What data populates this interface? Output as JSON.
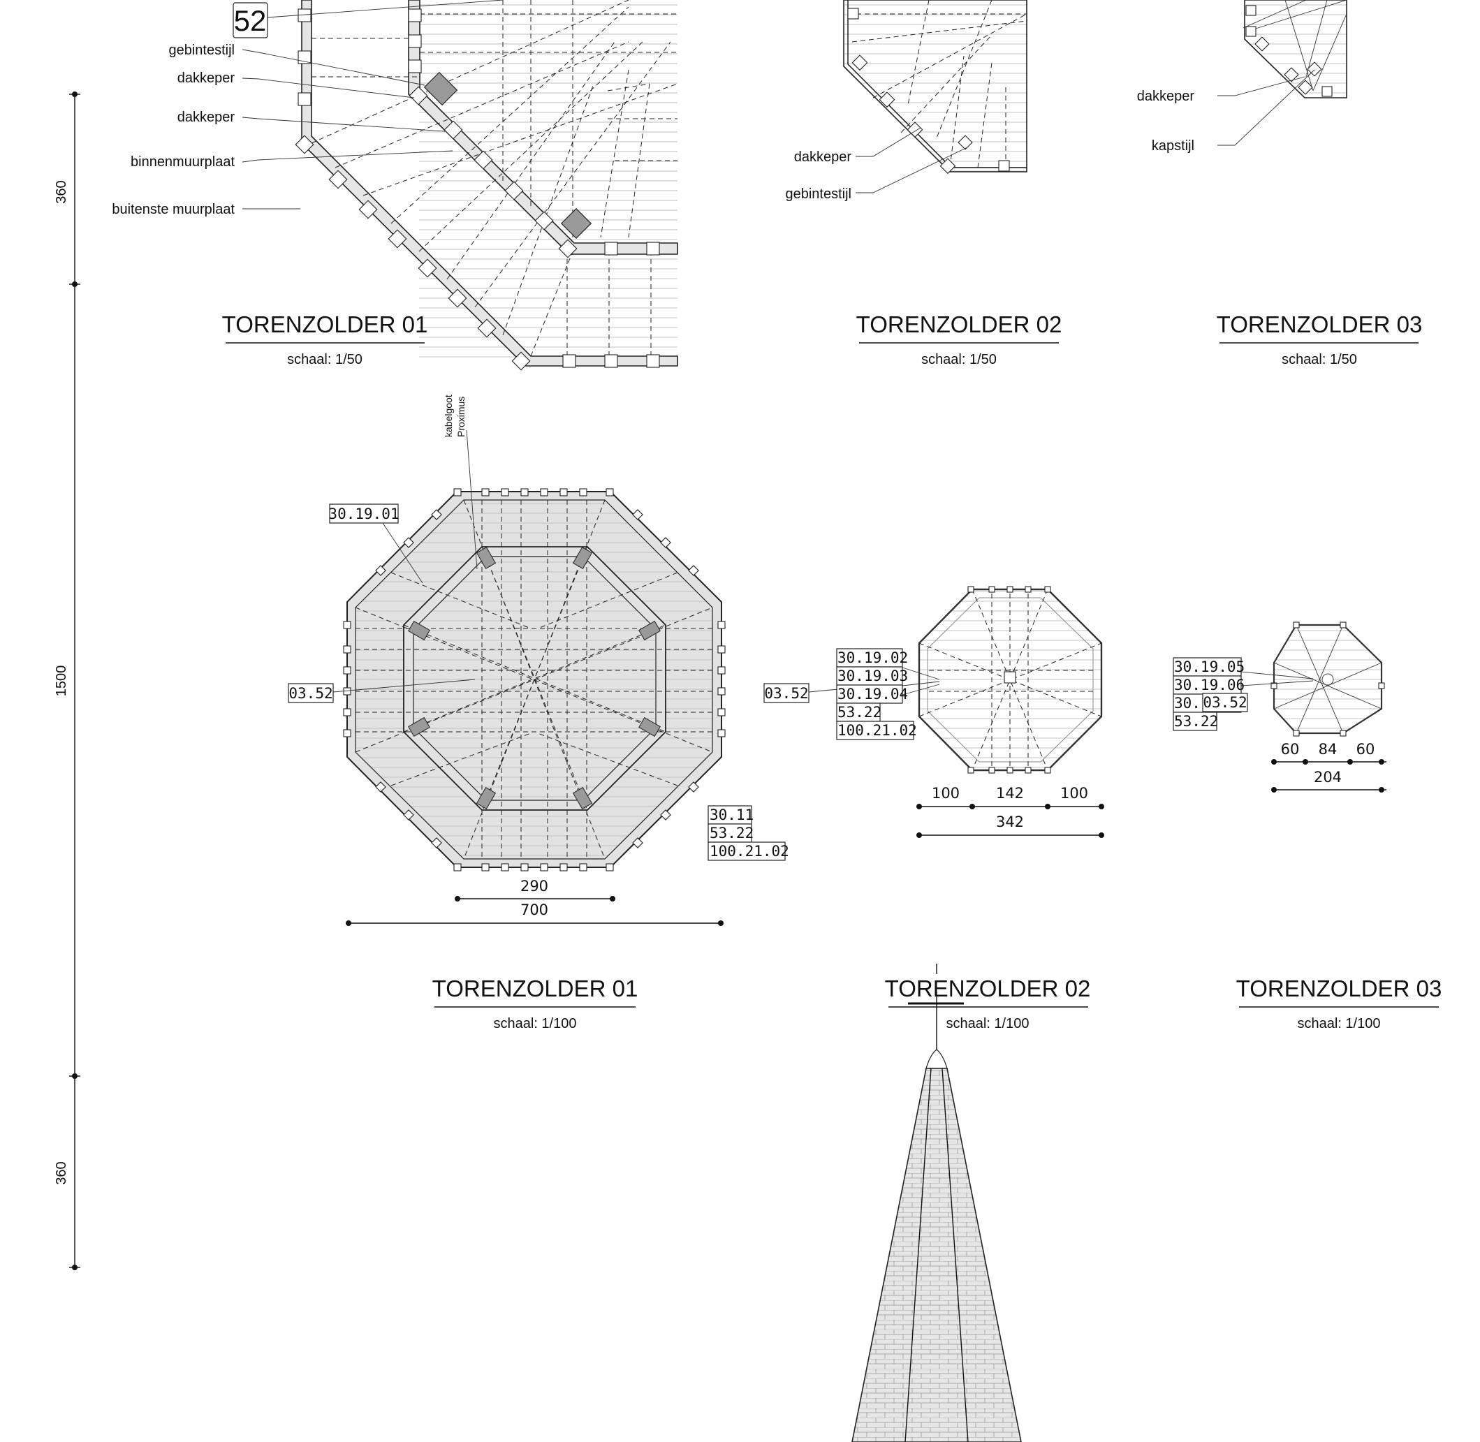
{
  "plans_1_50": [
    {
      "title": "TORENZOLDER 01",
      "scale": "schaal: 1/50",
      "tag": "52",
      "labels": [
        "gebintestijl",
        "dakkeper",
        "dakkeper",
        "binnenmuurplaat",
        "buitenste muurplaat"
      ]
    },
    {
      "title": "TORENZOLDER 02",
      "scale": "schaal: 1/50",
      "labels": [
        "dakkeper",
        "gebintestijl"
      ]
    },
    {
      "title": "TORENZOLDER 03",
      "scale": "schaal: 1/50",
      "labels": [
        "dakkeper",
        "kapstijl"
      ]
    }
  ],
  "plans_1_100": [
    {
      "title": "TORENZOLDER 01",
      "scale": "schaal: 1/100",
      "note_line1": "kabelgoot",
      "note_line2": "Proximus",
      "tags_top": [
        "30.19.01"
      ],
      "tags_left": [
        "03.52"
      ],
      "tags_bottom_right": [
        "30.11",
        "53.22",
        "100.21.02"
      ],
      "dims_inner": [
        "290"
      ],
      "dims_outer": [
        "700"
      ]
    },
    {
      "title": "TORENZOLDER 02",
      "scale": "schaal: 1/100",
      "tags_left_single": [
        "03.52"
      ],
      "tags_stack": [
        "30.19.02",
        "30.19.03",
        "30.19.04",
        "53.22",
        "100.21.02"
      ],
      "dims_inner": [
        "100",
        "142",
        "100"
      ],
      "dims_outer": [
        "342"
      ]
    },
    {
      "title": "TORENZOLDER 03",
      "scale": "schaal: 1/100",
      "tags_stack": [
        "30.19.05",
        "30.19.06",
        "30.19.07",
        "53.22"
      ],
      "tag_overlay": "03.52",
      "dims_inner": [
        "60",
        "84",
        "60"
      ],
      "dims_outer": [
        "204"
      ]
    }
  ],
  "vertical_dims": [
    "360",
    "1500",
    "360"
  ]
}
